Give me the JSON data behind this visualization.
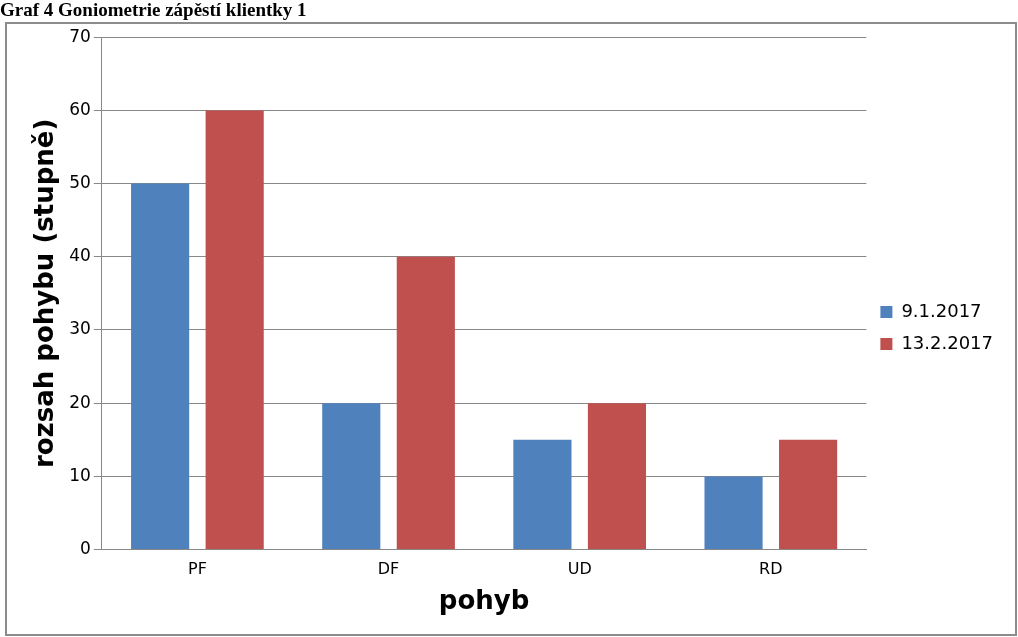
{
  "chart_data": {
    "type": "bar",
    "title": "Graf 4 Goniometrie zápěstí klientky 1",
    "xlabel": "pohyb",
    "ylabel": "rozsah pohybu (stupně)",
    "categories": [
      "PF",
      "DF",
      "UD",
      "RD"
    ],
    "series": [
      {
        "name": "9.1.2017",
        "color": "#4f81bd",
        "values": [
          50,
          20,
          15,
          10
        ]
      },
      {
        "name": "13.2.2017",
        "color": "#c0504d",
        "values": [
          60,
          40,
          20,
          15
        ]
      }
    ],
    "ylim": [
      0,
      70
    ],
    "yticks": [
      0,
      10,
      20,
      30,
      40,
      50,
      60,
      70
    ],
    "grid": "y",
    "legend": "right"
  }
}
